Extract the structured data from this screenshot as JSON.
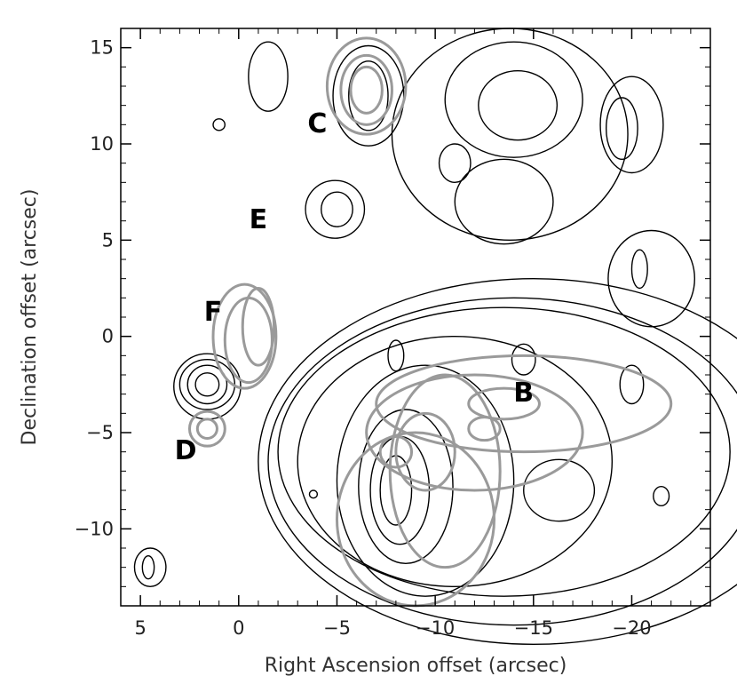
{
  "chart_data": {
    "type": "contour",
    "xlabel": "Right Ascension offset (arcsec)",
    "ylabel": "Declination offset (arcsec)",
    "xlim": [
      6,
      -24
    ],
    "ylim": [
      -14,
      16
    ],
    "xticks": [
      5,
      0,
      -5,
      -10,
      -15,
      -20
    ],
    "yticks": [
      15,
      10,
      5,
      0,
      -5,
      -10
    ],
    "xtick_labels": [
      "5",
      "0",
      "−5",
      "−10",
      "−15",
      "−20"
    ],
    "ytick_labels": [
      "15",
      "10",
      "5",
      "0",
      "−5",
      "−10"
    ],
    "grid": false,
    "series": [
      {
        "style": "black"
      },
      {
        "style": "gray"
      }
    ],
    "sources": [
      {
        "label": "C",
        "x": -4.0,
        "y": 11.0
      },
      {
        "label": "E",
        "x": -1.0,
        "y": 6.0
      },
      {
        "label": "F",
        "x": 1.3,
        "y": 1.2
      },
      {
        "label": "D",
        "x": 2.7,
        "y": -6.0
      },
      {
        "label": "B",
        "x": -14.5,
        "y": -3.0
      }
    ],
    "contours_black": [
      {
        "cx": 1.6,
        "cy": -2.5,
        "rx": 0.6,
        "ry": 0.6
      },
      {
        "cx": 1.6,
        "cy": -2.5,
        "rx": 1.0,
        "ry": 1.0
      },
      {
        "cx": 1.6,
        "cy": -2.5,
        "rx": 1.4,
        "ry": 1.3
      },
      {
        "cx": 1.6,
        "cy": -2.6,
        "rx": 1.7,
        "ry": 1.7
      },
      {
        "cx": -5.0,
        "cy": 6.6,
        "rx": 0.8,
        "ry": 0.9
      },
      {
        "cx": -4.9,
        "cy": 6.6,
        "rx": 1.5,
        "ry": 1.5
      },
      {
        "cx": -6.6,
        "cy": 12.5,
        "rx": 1.0,
        "ry": 1.8
      },
      {
        "cx": -6.6,
        "cy": 12.5,
        "rx": 1.8,
        "ry": 2.6
      },
      {
        "cx": -14.2,
        "cy": 12.0,
        "rx": 2.0,
        "ry": 1.8
      },
      {
        "cx": -14.0,
        "cy": 12.3,
        "rx": 3.5,
        "ry": 3.0
      },
      {
        "cx": -11.0,
        "cy": 9.0,
        "rx": 0.8,
        "ry": 1.0
      },
      {
        "cx": -13.5,
        "cy": 7.0,
        "rx": 2.5,
        "ry": 2.2
      },
      {
        "cx": -13.8,
        "cy": 10.5,
        "rx": 6.0,
        "ry": 5.5
      },
      {
        "cx": -19.5,
        "cy": 10.8,
        "rx": 0.8,
        "ry": 1.6
      },
      {
        "cx": -20.0,
        "cy": 11.0,
        "rx": 1.6,
        "ry": 2.5
      },
      {
        "cx": -20.4,
        "cy": 3.5,
        "rx": 0.4,
        "ry": 1.0
      },
      {
        "cx": -21.0,
        "cy": 3.0,
        "rx": 2.2,
        "ry": 2.5
      },
      {
        "cx": -20.0,
        "cy": -2.5,
        "rx": 0.6,
        "ry": 1.0
      },
      {
        "cx": -21.5,
        "cy": -8.3,
        "rx": 0.4,
        "ry": 0.5
      },
      {
        "cx": -3.8,
        "cy": -8.2,
        "rx": 0.2,
        "ry": 0.2
      },
      {
        "cx": -1.5,
        "cy": 13.5,
        "rx": 1.0,
        "ry": 1.8
      },
      {
        "cx": 1.0,
        "cy": 11.0,
        "rx": 0.3,
        "ry": 0.3
      },
      {
        "cx": 4.6,
        "cy": -12.0,
        "rx": 0.3,
        "ry": 0.6
      },
      {
        "cx": 4.5,
        "cy": -12.0,
        "rx": 0.8,
        "ry": 1.0
      },
      {
        "cx": -8.0,
        "cy": -8.0,
        "rx": 0.8,
        "ry": 1.8
      },
      {
        "cx": -8.2,
        "cy": -8.0,
        "rx": 1.5,
        "ry": 2.8
      },
      {
        "cx": -8.5,
        "cy": -7.8,
        "rx": 2.4,
        "ry": 4.0
      },
      {
        "cx": -9.5,
        "cy": -7.5,
        "rx": 4.5,
        "ry": 6.0
      },
      {
        "cx": -11.0,
        "cy": -6.5,
        "rx": 8.0,
        "ry": 6.5
      },
      {
        "cx": -13.5,
        "cy": -6.0,
        "rx": 11.5,
        "ry": 7.5
      },
      {
        "cx": -14.0,
        "cy": -6.5,
        "rx": 12.5,
        "ry": 8.5
      },
      {
        "cx": -15.0,
        "cy": -6.5,
        "rx": 14.0,
        "ry": 9.5
      },
      {
        "cx": -8.0,
        "cy": -1.0,
        "rx": 0.4,
        "ry": 0.8
      },
      {
        "cx": -14.5,
        "cy": -1.2,
        "rx": 0.6,
        "ry": 0.8
      },
      {
        "cx": -16.3,
        "cy": -8.0,
        "rx": 1.8,
        "ry": 1.6
      }
    ],
    "contours_gray": [
      {
        "cx": -1.0,
        "cy": 0.5,
        "rx": 0.8,
        "ry": 2.0
      },
      {
        "cx": -0.5,
        "cy": -0.2,
        "rx": 1.2,
        "ry": 2.2
      },
      {
        "cx": -0.3,
        "cy": 0.0,
        "rx": 1.6,
        "ry": 2.7
      },
      {
        "cx": 1.6,
        "cy": -4.8,
        "rx": 0.5,
        "ry": 0.5
      },
      {
        "cx": 1.6,
        "cy": -4.8,
        "rx": 0.9,
        "ry": 0.9
      },
      {
        "cx": -6.5,
        "cy": 12.8,
        "rx": 0.8,
        "ry": 1.2
      },
      {
        "cx": -6.5,
        "cy": 12.8,
        "rx": 1.3,
        "ry": 1.8
      },
      {
        "cx": -6.5,
        "cy": 13.0,
        "rx": 2.0,
        "ry": 2.5
      },
      {
        "cx": -12.0,
        "cy": -5.0,
        "rx": 5.5,
        "ry": 3.0
      },
      {
        "cx": -10.5,
        "cy": -7.0,
        "rx": 2.8,
        "ry": 5.0
      },
      {
        "cx": -9.5,
        "cy": -6.0,
        "rx": 1.5,
        "ry": 2.0
      },
      {
        "cx": -12.5,
        "cy": -4.8,
        "rx": 0.8,
        "ry": 0.6
      },
      {
        "cx": -8.0,
        "cy": -6.0,
        "rx": 0.8,
        "ry": 0.8
      },
      {
        "cx": -13.5,
        "cy": -3.5,
        "rx": 1.8,
        "ry": 0.8
      },
      {
        "cx": -14.5,
        "cy": -3.5,
        "rx": 7.5,
        "ry": 2.5
      },
      {
        "cx": -9.0,
        "cy": -9.5,
        "rx": 4.0,
        "ry": 4.5
      }
    ]
  }
}
